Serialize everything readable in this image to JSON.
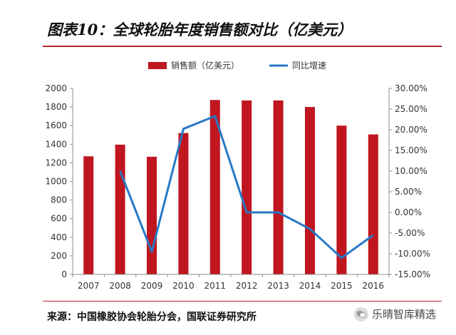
{
  "header": {
    "title": "图表10：全球轮胎年度销售额对比（亿美元）"
  },
  "footer": {
    "source": "来源：中国橡胶协会轮胎分会，国联证券研究所",
    "watermark": "乐晴智库精选",
    "watermark_icon": "wechat-icon"
  },
  "colors": {
    "bar": "#c0161f",
    "line": "#2878c6",
    "rule": "#b3262d"
  },
  "chart_data": {
    "type": "bar",
    "categories": [
      "2007",
      "2008",
      "2009",
      "2010",
      "2011",
      "2012",
      "2013",
      "2014",
      "2015",
      "2016"
    ],
    "series": [
      {
        "name": "销售额（亿美元）",
        "type": "bar",
        "axis": "left",
        "values": [
          1270,
          1395,
          1265,
          1520,
          1875,
          1870,
          1870,
          1800,
          1600,
          1505
        ]
      },
      {
        "name": "同比增速",
        "type": "line",
        "axis": "right",
        "values": [
          null,
          10.0,
          -9.5,
          20.2,
          23.3,
          0.0,
          0.0,
          -4.0,
          -11.0,
          -5.5
        ]
      }
    ],
    "y_left": {
      "min": 0,
      "max": 2000,
      "ticks": [
        "0",
        "200",
        "400",
        "600",
        "800",
        "1000",
        "1200",
        "1400",
        "1600",
        "1800",
        "2000"
      ]
    },
    "y_right": {
      "min": -15,
      "max": 30,
      "ticks": [
        "-15.00%",
        "-10.00%",
        "-5.00%",
        "0.00%",
        "5.00%",
        "10.00%",
        "15.00%",
        "20.00%",
        "25.00%",
        "30.00%"
      ]
    },
    "legend_position": "top-center",
    "grid": false
  }
}
